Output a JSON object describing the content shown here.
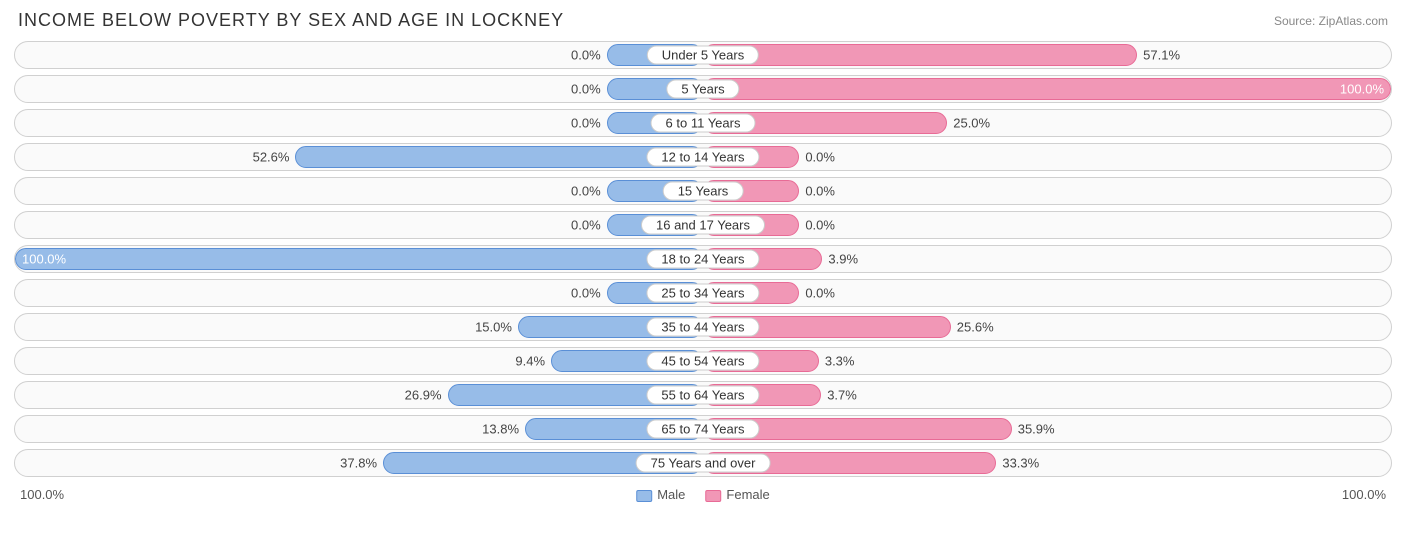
{
  "title": "INCOME BELOW POVERTY BY SEX AND AGE IN LOCKNEY",
  "source": "Source: ZipAtlas.com",
  "colors": {
    "male_fill": "#97bce8",
    "male_border": "#5a8fd6",
    "female_fill": "#f197b6",
    "female_border": "#e86b96",
    "row_border": "#d0d0d0",
    "row_bg": "#fafafa",
    "text": "#444444"
  },
  "axis": {
    "left": "100.0%",
    "right": "100.0%"
  },
  "legend": {
    "male": "Male",
    "female": "Female"
  },
  "base_bar_pct": 14,
  "rows": [
    {
      "category": "Under 5 Years",
      "male_pct": 0.0,
      "male_label": "0.0%",
      "female_pct": 57.1,
      "female_label": "57.1%"
    },
    {
      "category": "5 Years",
      "male_pct": 0.0,
      "male_label": "0.0%",
      "female_pct": 100.0,
      "female_label": "100.0%"
    },
    {
      "category": "6 to 11 Years",
      "male_pct": 0.0,
      "male_label": "0.0%",
      "female_pct": 25.0,
      "female_label": "25.0%"
    },
    {
      "category": "12 to 14 Years",
      "male_pct": 52.6,
      "male_label": "52.6%",
      "female_pct": 0.0,
      "female_label": "0.0%"
    },
    {
      "category": "15 Years",
      "male_pct": 0.0,
      "male_label": "0.0%",
      "female_pct": 0.0,
      "female_label": "0.0%"
    },
    {
      "category": "16 and 17 Years",
      "male_pct": 0.0,
      "male_label": "0.0%",
      "female_pct": 0.0,
      "female_label": "0.0%"
    },
    {
      "category": "18 to 24 Years",
      "male_pct": 100.0,
      "male_label": "100.0%",
      "female_pct": 3.9,
      "female_label": "3.9%"
    },
    {
      "category": "25 to 34 Years",
      "male_pct": 0.0,
      "male_label": "0.0%",
      "female_pct": 0.0,
      "female_label": "0.0%"
    },
    {
      "category": "35 to 44 Years",
      "male_pct": 15.0,
      "male_label": "15.0%",
      "female_pct": 25.6,
      "female_label": "25.6%"
    },
    {
      "category": "45 to 54 Years",
      "male_pct": 9.4,
      "male_label": "9.4%",
      "female_pct": 3.3,
      "female_label": "3.3%"
    },
    {
      "category": "55 to 64 Years",
      "male_pct": 26.9,
      "male_label": "26.9%",
      "female_pct": 3.7,
      "female_label": "3.7%"
    },
    {
      "category": "65 to 74 Years",
      "male_pct": 13.8,
      "male_label": "13.8%",
      "female_pct": 35.9,
      "female_label": "35.9%"
    },
    {
      "category": "75 Years and over",
      "male_pct": 37.8,
      "male_label": "37.8%",
      "female_pct": 33.3,
      "female_label": "33.3%"
    }
  ]
}
